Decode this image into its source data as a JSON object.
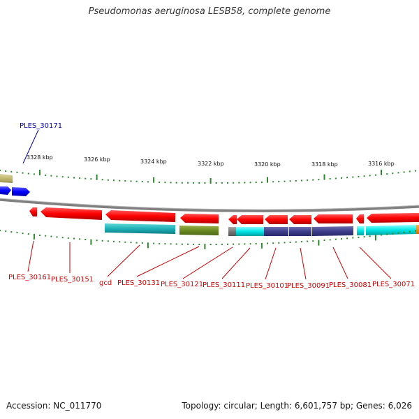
{
  "title": "Pseudomonas aeruginosa LESB58, complete genome",
  "footer": {
    "accession": "Accession: NC_011770",
    "summary": "Topology: circular; Length: 6,601,757 bp; Genes: 6,026"
  },
  "colors": {
    "forward_gene": "#0000ff",
    "reverse_gene": "#ff0000",
    "label_reverse": "#cc0000",
    "label_forward": "#0000aa",
    "tick": "#2b8a2b",
    "backbone": "#808080"
  },
  "scale_ticks": [
    {
      "label": "3328 kbp"
    },
    {
      "label": "3326 kbp"
    },
    {
      "label": "3324 kbp"
    },
    {
      "label": "3322 kbp"
    },
    {
      "label": "3320 kbp"
    },
    {
      "label": "3318 kbp"
    },
    {
      "label": "3316 kbp"
    }
  ],
  "gene_labels": [
    {
      "text": "PLES_30171",
      "strand": "forward"
    },
    {
      "text": "PLES_30161",
      "strand": "reverse"
    },
    {
      "text": "PLES_30151",
      "strand": "reverse"
    },
    {
      "text": "gcd",
      "strand": "reverse"
    },
    {
      "text": "PLES_30131",
      "strand": "reverse"
    },
    {
      "text": "PLES_30121",
      "strand": "reverse"
    },
    {
      "text": "PLES_30111",
      "strand": "reverse"
    },
    {
      "text": "PLES_30101",
      "strand": "reverse"
    },
    {
      "text": "PLES_30091",
      "strand": "reverse"
    },
    {
      "text": "PLES_30081",
      "strand": "reverse"
    },
    {
      "text": "PLES_30071",
      "strand": "reverse"
    }
  ]
}
